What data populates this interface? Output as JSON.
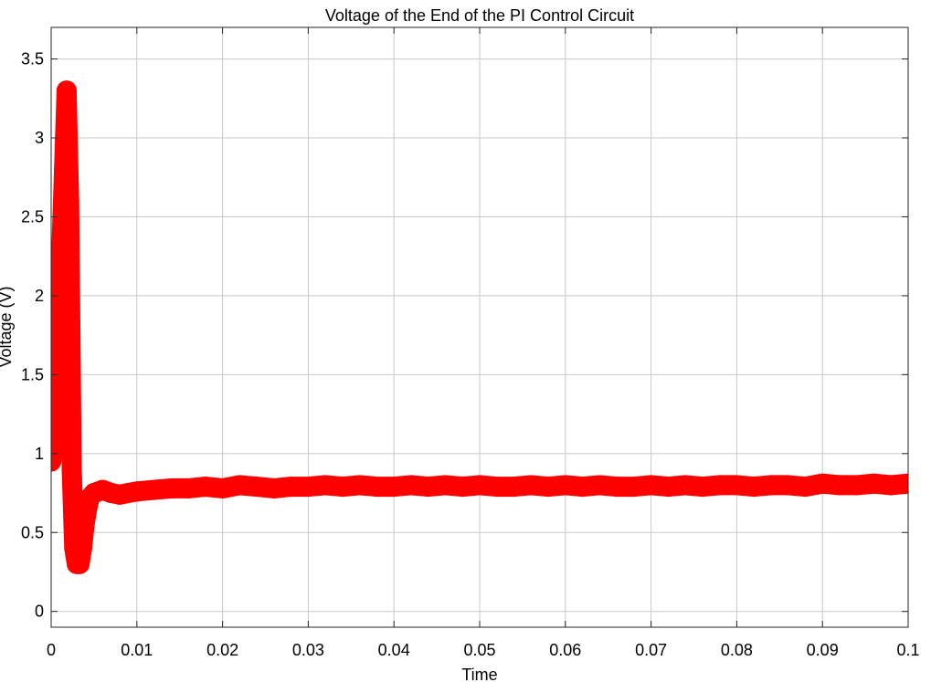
{
  "chart_data": {
    "type": "line",
    "title": "Voltage of the End of the PI Control Circuit",
    "xlabel": "Time",
    "ylabel": "Voltage (V)",
    "xlim": [
      0,
      0.1
    ],
    "ylim": [
      -0.1,
      3.7
    ],
    "grid": true,
    "legend": "none",
    "xticks": [
      0,
      0.01,
      0.02,
      0.03,
      0.04,
      0.05,
      0.06,
      0.07,
      0.08,
      0.09,
      0.1
    ],
    "xtick_labels": [
      "0",
      "0.01",
      "0.02",
      "0.03",
      "0.04",
      "0.05",
      "0.06",
      "0.07",
      "0.08",
      "0.09",
      "0.1"
    ],
    "yticks": [
      0,
      0.5,
      1,
      1.5,
      2,
      2.5,
      3,
      3.5
    ],
    "ytick_labels": [
      "0",
      "0.5",
      "1",
      "1.5",
      "2",
      "2.5",
      "3",
      "3.5"
    ],
    "series": [
      {
        "color": "#ff0000",
        "x": [
          0,
          0.0003,
          0.0006,
          0.0009,
          0.0012,
          0.0015,
          0.0018,
          0.0021,
          0.0024,
          0.0027,
          0.003,
          0.0033,
          0.0036,
          0.0039,
          0.0042,
          0.0045,
          0.005,
          0.0055,
          0.006,
          0.007,
          0.008,
          0.009,
          0.01,
          0.012,
          0.014,
          0.016,
          0.018,
          0.02,
          0.022,
          0.024,
          0.026,
          0.028,
          0.03,
          0.032,
          0.034,
          0.036,
          0.038,
          0.04,
          0.042,
          0.044,
          0.046,
          0.048,
          0.05,
          0.052,
          0.054,
          0.056,
          0.058,
          0.06,
          0.062,
          0.064,
          0.066,
          0.068,
          0.07,
          0.072,
          0.074,
          0.076,
          0.078,
          0.08,
          0.082,
          0.084,
          0.086,
          0.088,
          0.09,
          0.092,
          0.094,
          0.096,
          0.098,
          0.1
        ],
        "y": [
          0.95,
          1.1,
          1.4,
          1.8,
          2.3,
          2.8,
          3.3,
          2.6,
          0.9,
          0.4,
          0.3,
          0.3,
          0.4,
          0.55,
          0.65,
          0.72,
          0.75,
          0.76,
          0.77,
          0.75,
          0.74,
          0.75,
          0.76,
          0.77,
          0.78,
          0.78,
          0.79,
          0.78,
          0.8,
          0.79,
          0.78,
          0.79,
          0.79,
          0.8,
          0.79,
          0.8,
          0.79,
          0.79,
          0.8,
          0.79,
          0.8,
          0.79,
          0.8,
          0.79,
          0.79,
          0.8,
          0.79,
          0.8,
          0.79,
          0.8,
          0.79,
          0.79,
          0.8,
          0.79,
          0.8,
          0.79,
          0.8,
          0.8,
          0.79,
          0.8,
          0.8,
          0.79,
          0.81,
          0.8,
          0.8,
          0.81,
          0.8,
          0.81
        ]
      }
    ]
  }
}
